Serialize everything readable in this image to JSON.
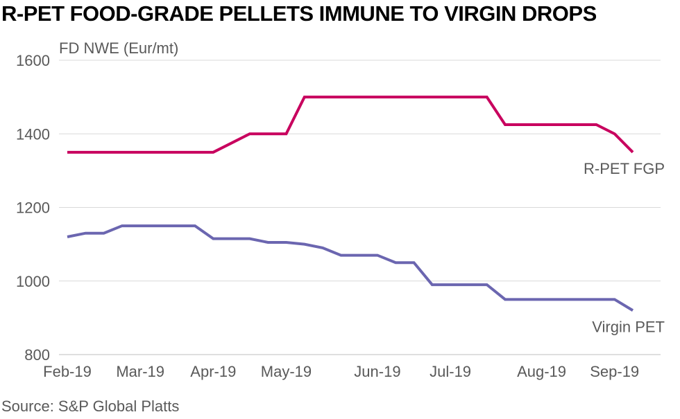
{
  "title": "R-PET FOOD-GRADE PELLETS IMMUNE TO VIRGIN DROPS",
  "source": "Source: S&P Global Platts",
  "colors": {
    "rpet": "#c8005e",
    "virgin": "#6b66b0",
    "grid": "#d9d9d9",
    "text": "#595959"
  },
  "chart_data": {
    "type": "line",
    "ylabel": "FD NWE (Eur/mt)",
    "ylim": [
      800,
      1600
    ],
    "yticks": [
      800,
      1000,
      1200,
      1400,
      1600
    ],
    "grid": true,
    "x_tick_labels": [
      {
        "label": "Feb-19",
        "x": 0
      },
      {
        "label": "Mar-19",
        "x": 4
      },
      {
        "label": "Apr-19",
        "x": 8
      },
      {
        "label": "May-19",
        "x": 12
      },
      {
        "label": "Jun-19",
        "x": 17
      },
      {
        "label": "Jul-19",
        "x": 21
      },
      {
        "label": "Aug-19",
        "x": 26
      },
      {
        "label": "Sep-19",
        "x": 30
      }
    ],
    "x": [
      0,
      1,
      2,
      3,
      4,
      5,
      6,
      7,
      8,
      9,
      10,
      11,
      12,
      13,
      14,
      15,
      16,
      17,
      18,
      19,
      20,
      21,
      22,
      23,
      24,
      25,
      26,
      27,
      28,
      29,
      30,
      31
    ],
    "series": [
      {
        "name": "R-PET FGP",
        "color_key": "rpet",
        "values": [
          1350,
          1350,
          1350,
          1350,
          1350,
          1350,
          1350,
          1350,
          1350,
          1375,
          1400,
          1400,
          1400,
          1500,
          1500,
          1500,
          1500,
          1500,
          1500,
          1500,
          1500,
          1500,
          1500,
          1500,
          1425,
          1425,
          1425,
          1425,
          1425,
          1425,
          1400,
          1350
        ]
      },
      {
        "name": "Virgin PET",
        "color_key": "virgin",
        "values": [
          1120,
          1130,
          1130,
          1150,
          1150,
          1150,
          1150,
          1150,
          1115,
          1115,
          1115,
          1105,
          1105,
          1100,
          1090,
          1070,
          1070,
          1070,
          1050,
          1050,
          990,
          990,
          990,
          990,
          950,
          950,
          950,
          950,
          950,
          950,
          950,
          920
        ]
      }
    ]
  }
}
